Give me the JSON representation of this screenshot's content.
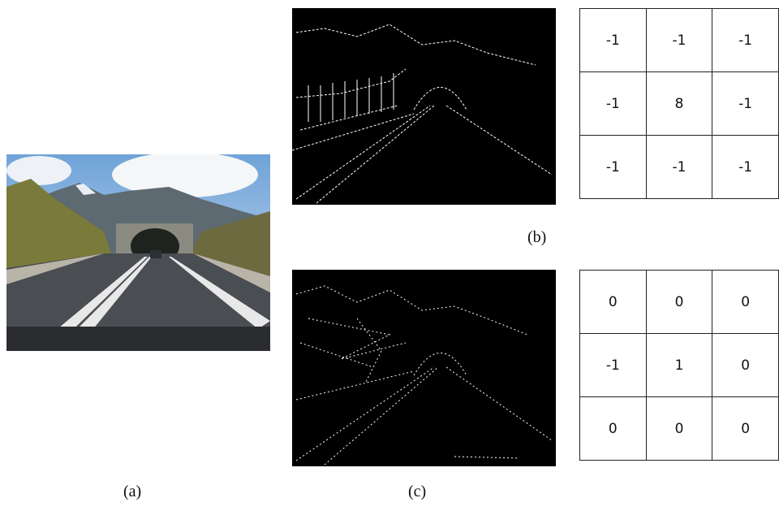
{
  "figure": {
    "captions": {
      "a": "(a)",
      "b": "(b)",
      "c": "(c)"
    },
    "kernels": [
      {
        "rows": [
          [
            -1,
            -1,
            -1
          ],
          [
            -1,
            8,
            -1
          ],
          [
            -1,
            -1,
            -1
          ]
        ]
      },
      {
        "rows": [
          [
            0,
            0,
            0
          ],
          [
            -1,
            1,
            0
          ],
          [
            0,
            0,
            0
          ]
        ]
      }
    ]
  }
}
